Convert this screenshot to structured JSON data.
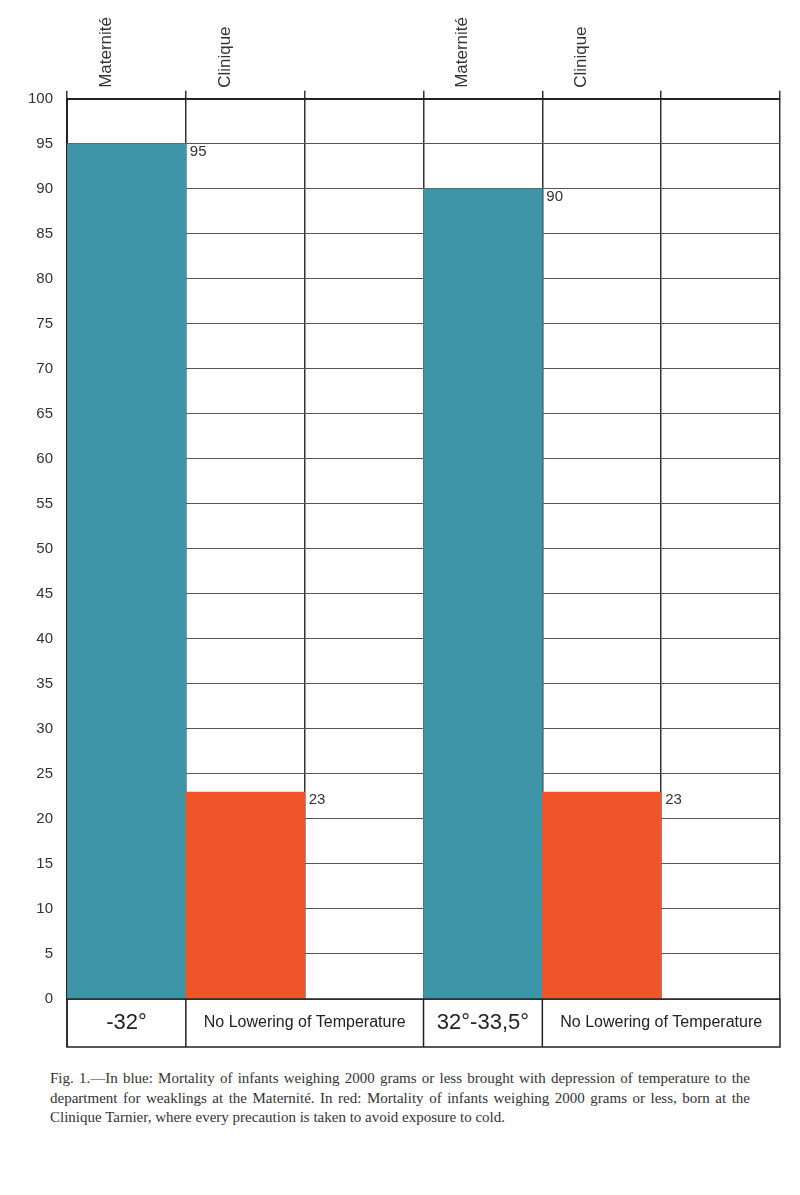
{
  "chart_data": {
    "type": "bar",
    "categories": [
      "Maternité",
      "Clinique",
      null,
      "Maternité",
      "Clinique",
      null
    ],
    "values": [
      95,
      23,
      null,
      90,
      23,
      null
    ],
    "colors": [
      "#3d95a7",
      "#f0542a",
      null,
      "#3d95a7",
      "#f0542a",
      null
    ],
    "ylim": [
      0,
      100
    ],
    "yticks": [
      0,
      5,
      10,
      15,
      20,
      25,
      30,
      35,
      40,
      45,
      50,
      55,
      60,
      65,
      70,
      75,
      80,
      85,
      90,
      95,
      100
    ],
    "grid": true,
    "data_labels": true,
    "annotations": [
      {
        "text": "-32°",
        "from": 0,
        "to": 0
      },
      {
        "text": "No Lowering of Temperature",
        "from": 1,
        "to": 2
      },
      {
        "text": "32°-33,5°",
        "from": 3,
        "to": 3
      },
      {
        "text": "No Lowering of Temperature",
        "from": 4,
        "to": 5
      }
    ],
    "caption": "Fig. 1.—In blue: Mortality of infants weighing 2000 grams or less brought with depression of temperature to the department for weaklings at the Maternité. In red: Mortality of infants weighing 2000 grams or less, born at the Clinique Tarnier, where every precaution is taken to avoid exposure to cold."
  }
}
